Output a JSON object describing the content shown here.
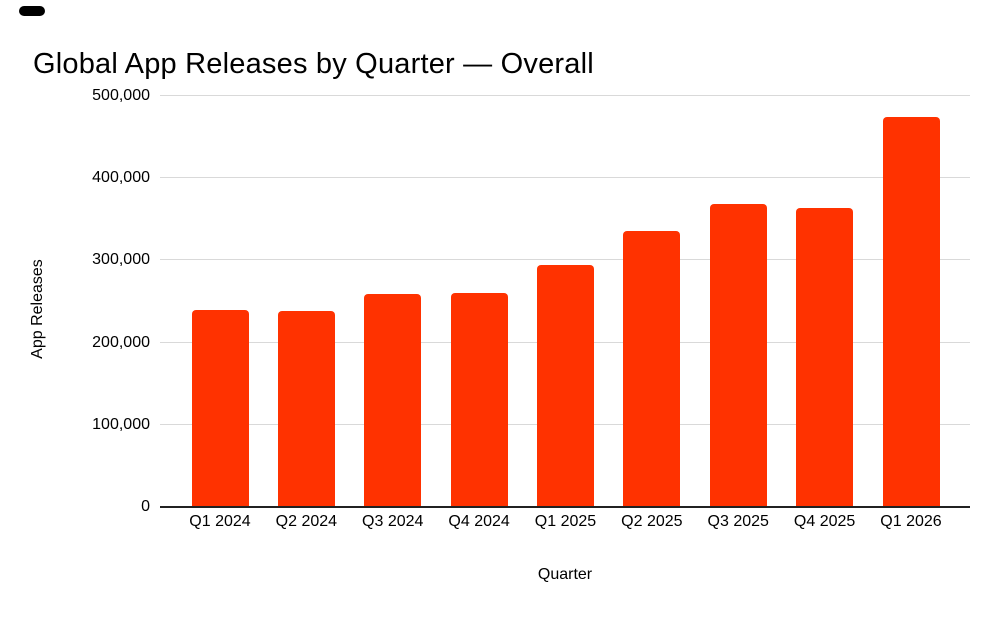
{
  "chart_data": {
    "type": "bar",
    "title": "Global App Releases by Quarter — Overall",
    "xlabel": "Quarter",
    "ylabel": "App Releases",
    "categories": [
      "Q1 2024",
      "Q2 2024",
      "Q3 2024",
      "Q4 2024",
      "Q1 2025",
      "Q2 2025",
      "Q3 2025",
      "Q4 2025",
      "Q1 2026"
    ],
    "values": [
      240000,
      238000,
      259000,
      260000,
      295000,
      336000,
      369000,
      364000,
      475000
    ],
    "ylim": [
      0,
      500000
    ],
    "yticks": [
      0,
      100000,
      200000,
      300000,
      400000,
      500000
    ],
    "ytick_labels": [
      "0",
      "100,000",
      "200,000",
      "300,000",
      "400,000",
      "500,000"
    ],
    "grid": true,
    "legend": "none",
    "colors": {
      "bars": "#FF3200",
      "gridline": "#D9D9D9",
      "axis_line": "#212121",
      "text": "#000000"
    }
  }
}
